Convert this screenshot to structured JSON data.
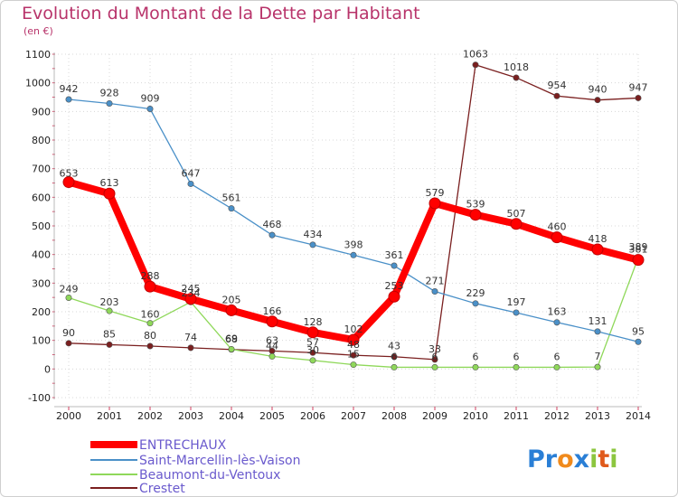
{
  "chart_data": {
    "type": "line",
    "title": "Evolution du Montant de la Dette par Habitant",
    "subtitle": "(en €)",
    "x": [
      2000,
      2001,
      2002,
      2003,
      2004,
      2005,
      2006,
      2007,
      2008,
      2009,
      2010,
      2011,
      2012,
      2013,
      2014
    ],
    "ylim": [
      -100,
      1100
    ],
    "yticks": [
      -100,
      0,
      100,
      200,
      300,
      400,
      500,
      600,
      700,
      800,
      900,
      1000,
      1100
    ],
    "grid": true,
    "legend": "bottom-left",
    "series": [
      {
        "name": "ENTRECHAUX",
        "color": "#ff0000",
        "values": [
          653,
          613,
          288,
          245,
          205,
          166,
          128,
          102,
          253,
          579,
          539,
          507,
          460,
          418,
          381
        ]
      },
      {
        "name": "Saint-Marcellin-lès-Vaison",
        "color": "#4a90c8",
        "values": [
          942,
          928,
          909,
          647,
          561,
          468,
          434,
          398,
          361,
          271,
          229,
          197,
          163,
          131,
          95
        ]
      },
      {
        "name": "Beaumont-du-Ventoux",
        "color": "#8fd85a",
        "values": [
          249,
          203,
          160,
          234,
          69,
          44,
          30,
          15,
          6,
          6,
          6,
          6,
          6,
          7,
          389
        ]
      },
      {
        "name": "Crestet",
        "color": "#7a1f1f",
        "values": [
          90,
          85,
          80,
          74,
          68,
          63,
          57,
          48,
          43,
          33,
          1063,
          1018,
          954,
          940,
          947
        ]
      }
    ]
  },
  "logo": {
    "text": "Proxiti"
  }
}
